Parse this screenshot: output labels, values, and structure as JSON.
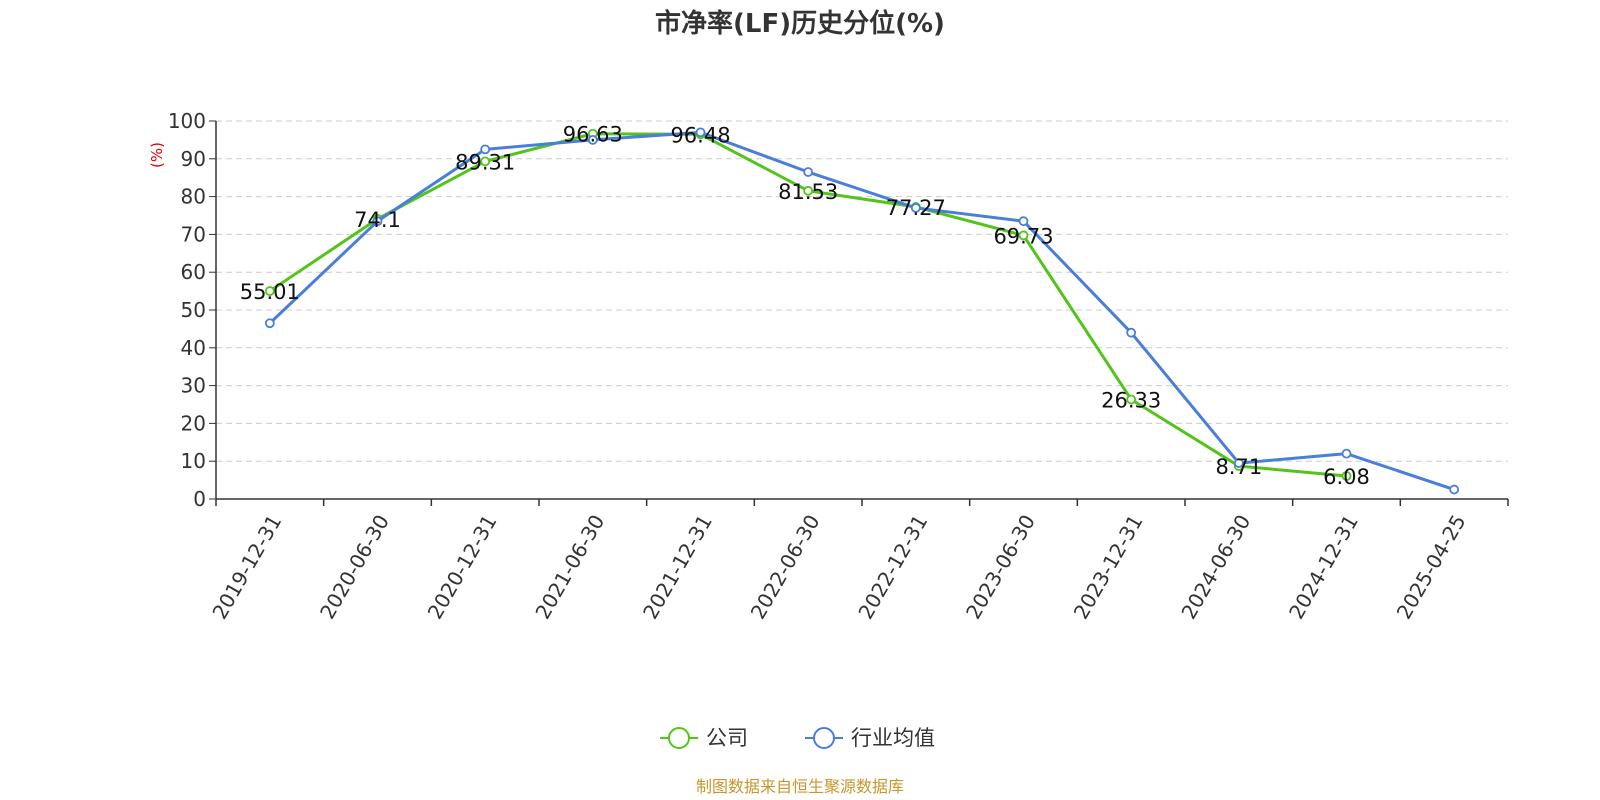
{
  "chart_data": {
    "type": "line",
    "title": "市净率(LF)历史分位(%)",
    "y_unit": "(%)",
    "categories": [
      "2019-12-31",
      "2020-06-30",
      "2020-12-31",
      "2021-06-30",
      "2021-12-31",
      "2022-06-30",
      "2022-12-31",
      "2023-06-30",
      "2023-12-31",
      "2024-06-30",
      "2024-12-31",
      "2025-04-25"
    ],
    "ylim": [
      0,
      100
    ],
    "yticks": [
      0,
      10,
      20,
      30,
      40,
      50,
      60,
      70,
      80,
      90,
      100
    ],
    "grid": true,
    "legend_position": "bottom-center",
    "series": [
      {
        "name": "公司",
        "color": "#52c41a",
        "values": [
          55.01,
          74.1,
          89.31,
          96.63,
          96.48,
          81.53,
          77.27,
          69.73,
          26.33,
          8.71,
          6.08,
          null
        ],
        "labels": [
          "55.01",
          "74.1",
          "89.31",
          "96.63",
          "96.48",
          "81.53",
          "77.27",
          "69.73",
          "26.33",
          "8.71",
          "6.08",
          ""
        ]
      },
      {
        "name": "行业均值",
        "color": "#4a7fd9",
        "values": [
          46.5,
          73.5,
          92.5,
          95,
          97,
          86.5,
          77,
          73.5,
          44,
          9.5,
          12,
          2.5
        ]
      }
    ]
  },
  "source": "制图数据来自恒生聚源数据库",
  "colors": {
    "unit": "#dd0000",
    "source": "#c8962a",
    "grid": "#cccccc",
    "axis": "#333333"
  }
}
